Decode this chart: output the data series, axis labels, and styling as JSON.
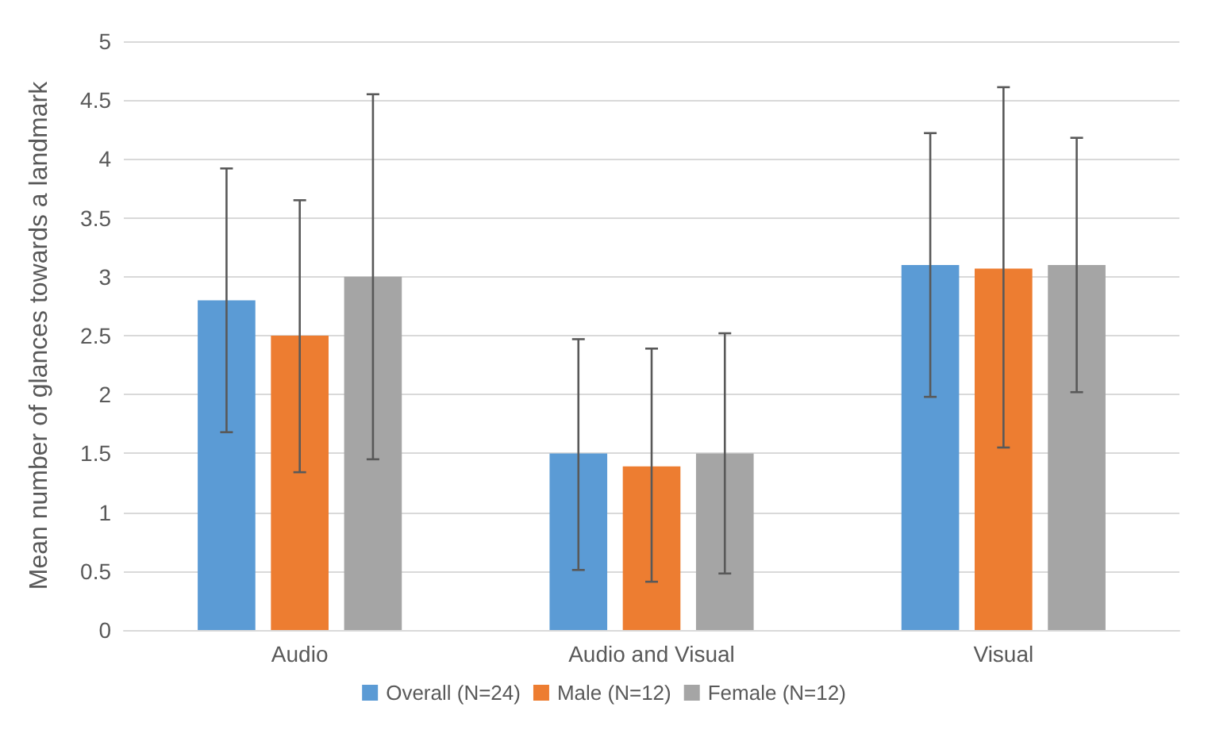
{
  "chart_data": {
    "type": "bar",
    "ylabel": "Mean number of glances towards a landmark",
    "categories": [
      "Audio",
      "Audio and Visual",
      "Visual"
    ],
    "series": [
      {
        "name": "Overall (N=24)",
        "color": "#5b9bd5",
        "values": [
          2.8,
          1.5,
          3.1
        ],
        "errors": [
          [
            1.68,
            3.92
          ],
          [
            0.51,
            2.47
          ],
          [
            1.98,
            4.22
          ]
        ]
      },
      {
        "name": "Male (N=12)",
        "color": "#ed7d31",
        "values": [
          2.5,
          1.39,
          3.07
        ],
        "errors": [
          [
            1.34,
            3.65
          ],
          [
            0.41,
            2.39
          ],
          [
            1.55,
            4.61
          ]
        ]
      },
      {
        "name": "Female (N=12)",
        "color": "#a5a5a5",
        "values": [
          3.0,
          1.5,
          3.1
        ],
        "errors": [
          [
            1.45,
            4.55
          ],
          [
            0.48,
            2.52
          ],
          [
            2.02,
            4.18
          ]
        ]
      }
    ],
    "ylim": [
      0,
      5
    ],
    "yticks": [
      0,
      0.5,
      1,
      1.5,
      2,
      2.5,
      3,
      3.5,
      4,
      4.5,
      5
    ],
    "grid": "y",
    "legend": "bottom"
  }
}
